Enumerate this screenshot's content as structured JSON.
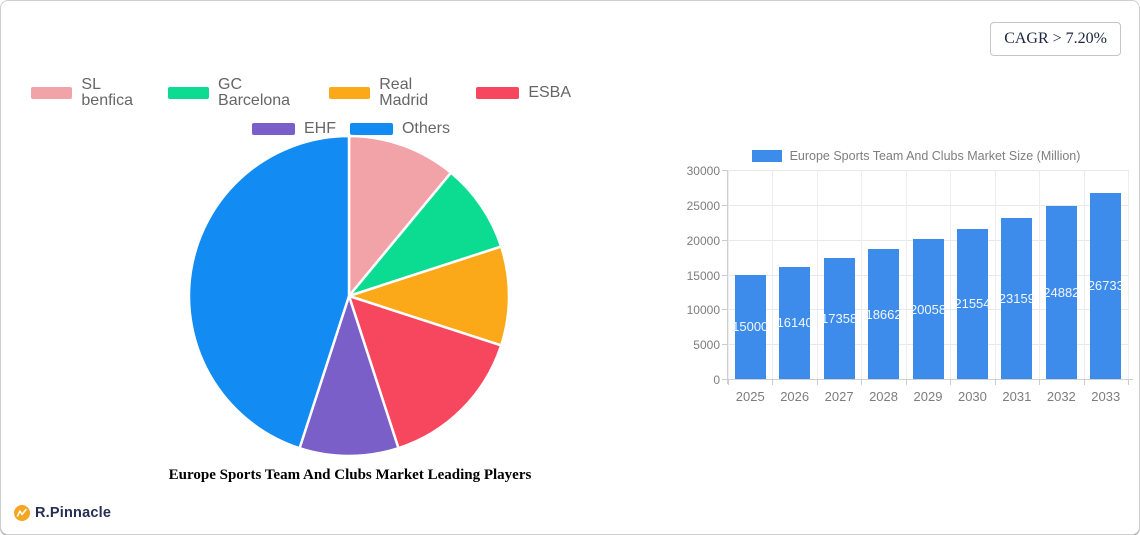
{
  "badge": {
    "text": "CAGR > 7.20%"
  },
  "brand": {
    "text": "R.Pinnacle",
    "icon_color": "#f5a623"
  },
  "chart_data": [
    {
      "type": "pie",
      "title": "Europe Sports Team And Clubs Market Leading Players",
      "labels": [
        "SL benfica",
        "GC Barcelona",
        "Real Madrid",
        "ESBA",
        "EHF",
        "Others"
      ],
      "values": [
        11,
        9,
        10,
        15,
        10,
        45
      ],
      "colors": [
        "#f2a3a8",
        "#0cdc92",
        "#fba819",
        "#f6475f",
        "#7b5fc8",
        "#128bf2"
      ],
      "start_angle": "12-oclock",
      "direction": "clockwise",
      "legend_position": "top",
      "legend_rows": [
        4,
        2
      ]
    },
    {
      "type": "bar",
      "legend": "Europe Sports Team And Clubs Market Size (Million)",
      "categories": [
        "2025",
        "2026",
        "2027",
        "2028",
        "2029",
        "2030",
        "2031",
        "2032",
        "2033"
      ],
      "values": [
        15000,
        16140,
        17358,
        18662,
        20058,
        21554,
        23159,
        24882,
        26733
      ],
      "bar_color": "#3d8ceb",
      "value_label_color": "#ffffff",
      "ylim": [
        0,
        30000
      ],
      "yticks": [
        0,
        5000,
        10000,
        15000,
        20000,
        25000,
        30000
      ],
      "grid": true,
      "legend_position": "top"
    }
  ]
}
